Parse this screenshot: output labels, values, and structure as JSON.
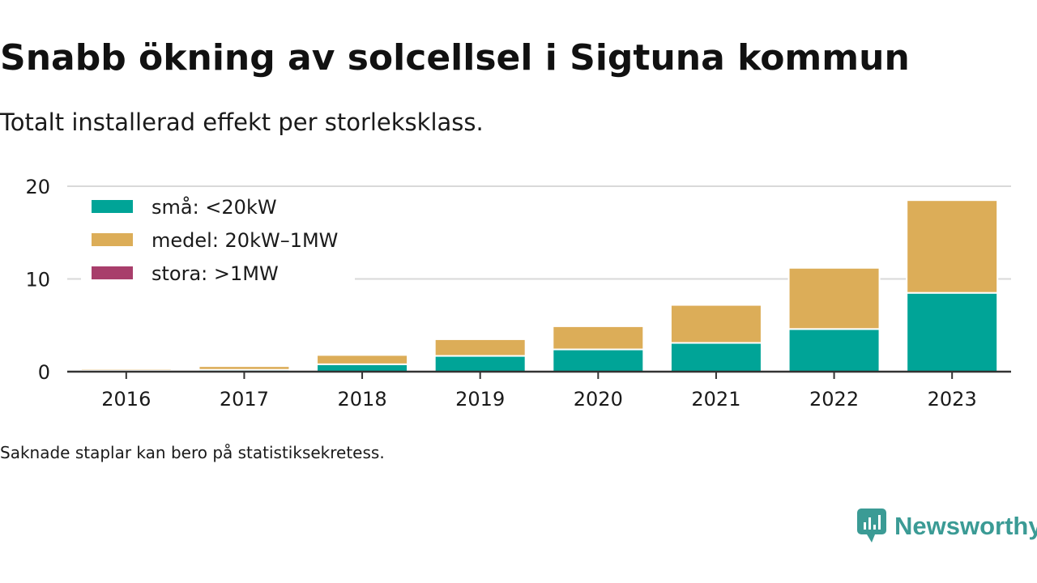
{
  "colors": {
    "sma": "#00a497",
    "medel": "#dcad58",
    "stora": "#a83e6b",
    "grid": "#d9d9d9",
    "axis": "#333333",
    "text": "#1a1a1a",
    "brand": "#3b9b95"
  },
  "header": {
    "title": "Snabb ökning av solcellsel i Sigtuna kommun",
    "subtitle": "Totalt installerad effekt per storleksklass."
  },
  "footnote": "Saknade staplar kan bero på statistiksekretess.",
  "brand": {
    "name": "Newsworthy",
    "icon": "newsworthy-logo-icon"
  },
  "chart_data": {
    "type": "bar",
    "stacked": true,
    "categories": [
      "2016",
      "2017",
      "2018",
      "2019",
      "2020",
      "2021",
      "2022",
      "2023"
    ],
    "series": [
      {
        "name": "små: <20kW",
        "color": "#00a497",
        "values": [
          0.1,
          0.2,
          0.8,
          1.7,
          2.4,
          3.1,
          4.6,
          8.5
        ]
      },
      {
        "name": "medel: 20kW–1MW",
        "color": "#dcad58",
        "values": [
          0.2,
          0.4,
          1.0,
          1.8,
          2.5,
          4.1,
          6.6,
          10.0
        ]
      },
      {
        "name": "stora: >1MW",
        "color": "#a83e6b",
        "values": [
          0,
          0,
          0,
          0,
          0,
          0,
          0,
          0
        ]
      }
    ],
    "yticks": [
      "0",
      "10",
      "20"
    ],
    "ylim": [
      0,
      20
    ],
    "grid": true,
    "legend": "top-left"
  }
}
